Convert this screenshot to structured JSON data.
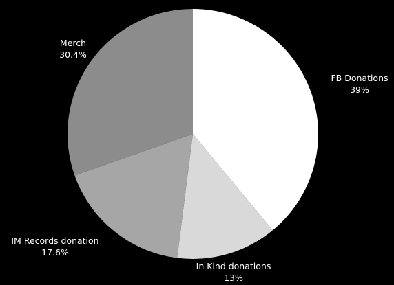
{
  "chart_data": {
    "type": "pie",
    "title": "",
    "start_angle_deg": 0,
    "direction": "clockwise",
    "slices": [
      {
        "label": "FB Donations",
        "value": 39,
        "value_label": "39%",
        "color": "#ffffff"
      },
      {
        "label": "In Kind donations",
        "value": 13,
        "value_label": "13%",
        "color": "#d9d9d9"
      },
      {
        "label": "IM Records donation",
        "value": 17.6,
        "value_label": "17.6%",
        "color": "#a6a6a6"
      },
      {
        "label": "Merch",
        "value": 30.4,
        "value_label": "30.4%",
        "color": "#8c8c8c"
      }
    ]
  }
}
